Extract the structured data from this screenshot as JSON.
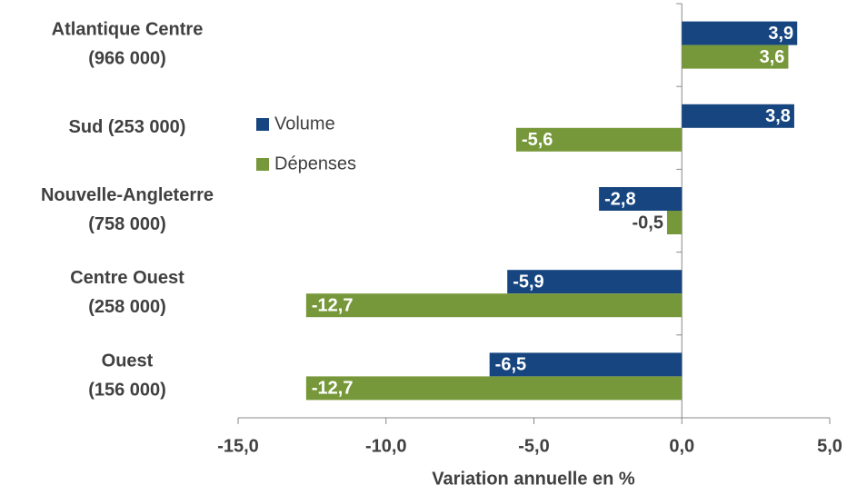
{
  "chart_data": {
    "type": "hbar",
    "xlabel": "Variation annuelle en %",
    "categories": [
      "Atlantique Centre\n(966 000)",
      "Sud (253 000)",
      "Nouvelle-Angleterre\n(758 000)",
      "Centre Ouest\n(258 000)",
      "Ouest\n(156 000)"
    ],
    "series": [
      {
        "name": "Volume",
        "color": "#17457f",
        "values": [
          3.9,
          3.8,
          -2.8,
          -5.9,
          -6.5
        ],
        "value_labels": [
          "3,9",
          "3,8",
          "-2,8",
          "-5,9",
          "-6,5"
        ]
      },
      {
        "name": "Dépenses",
        "color": "#77983a",
        "values": [
          3.6,
          -5.6,
          -0.5,
          -12.7,
          -12.7
        ],
        "value_labels": [
          "3,6",
          "-5,6",
          "-0,5",
          "-12,7",
          "-12,7"
        ]
      }
    ],
    "xlim": [
      -15,
      5
    ],
    "xticks": [
      {
        "value": -15,
        "label": "-15,0"
      },
      {
        "value": -10,
        "label": "-10,0"
      },
      {
        "value": -5,
        "label": "-5,0"
      },
      {
        "value": 0,
        "label": "0,0"
      },
      {
        "value": 5,
        "label": "5,0"
      }
    ],
    "legend": "center"
  }
}
